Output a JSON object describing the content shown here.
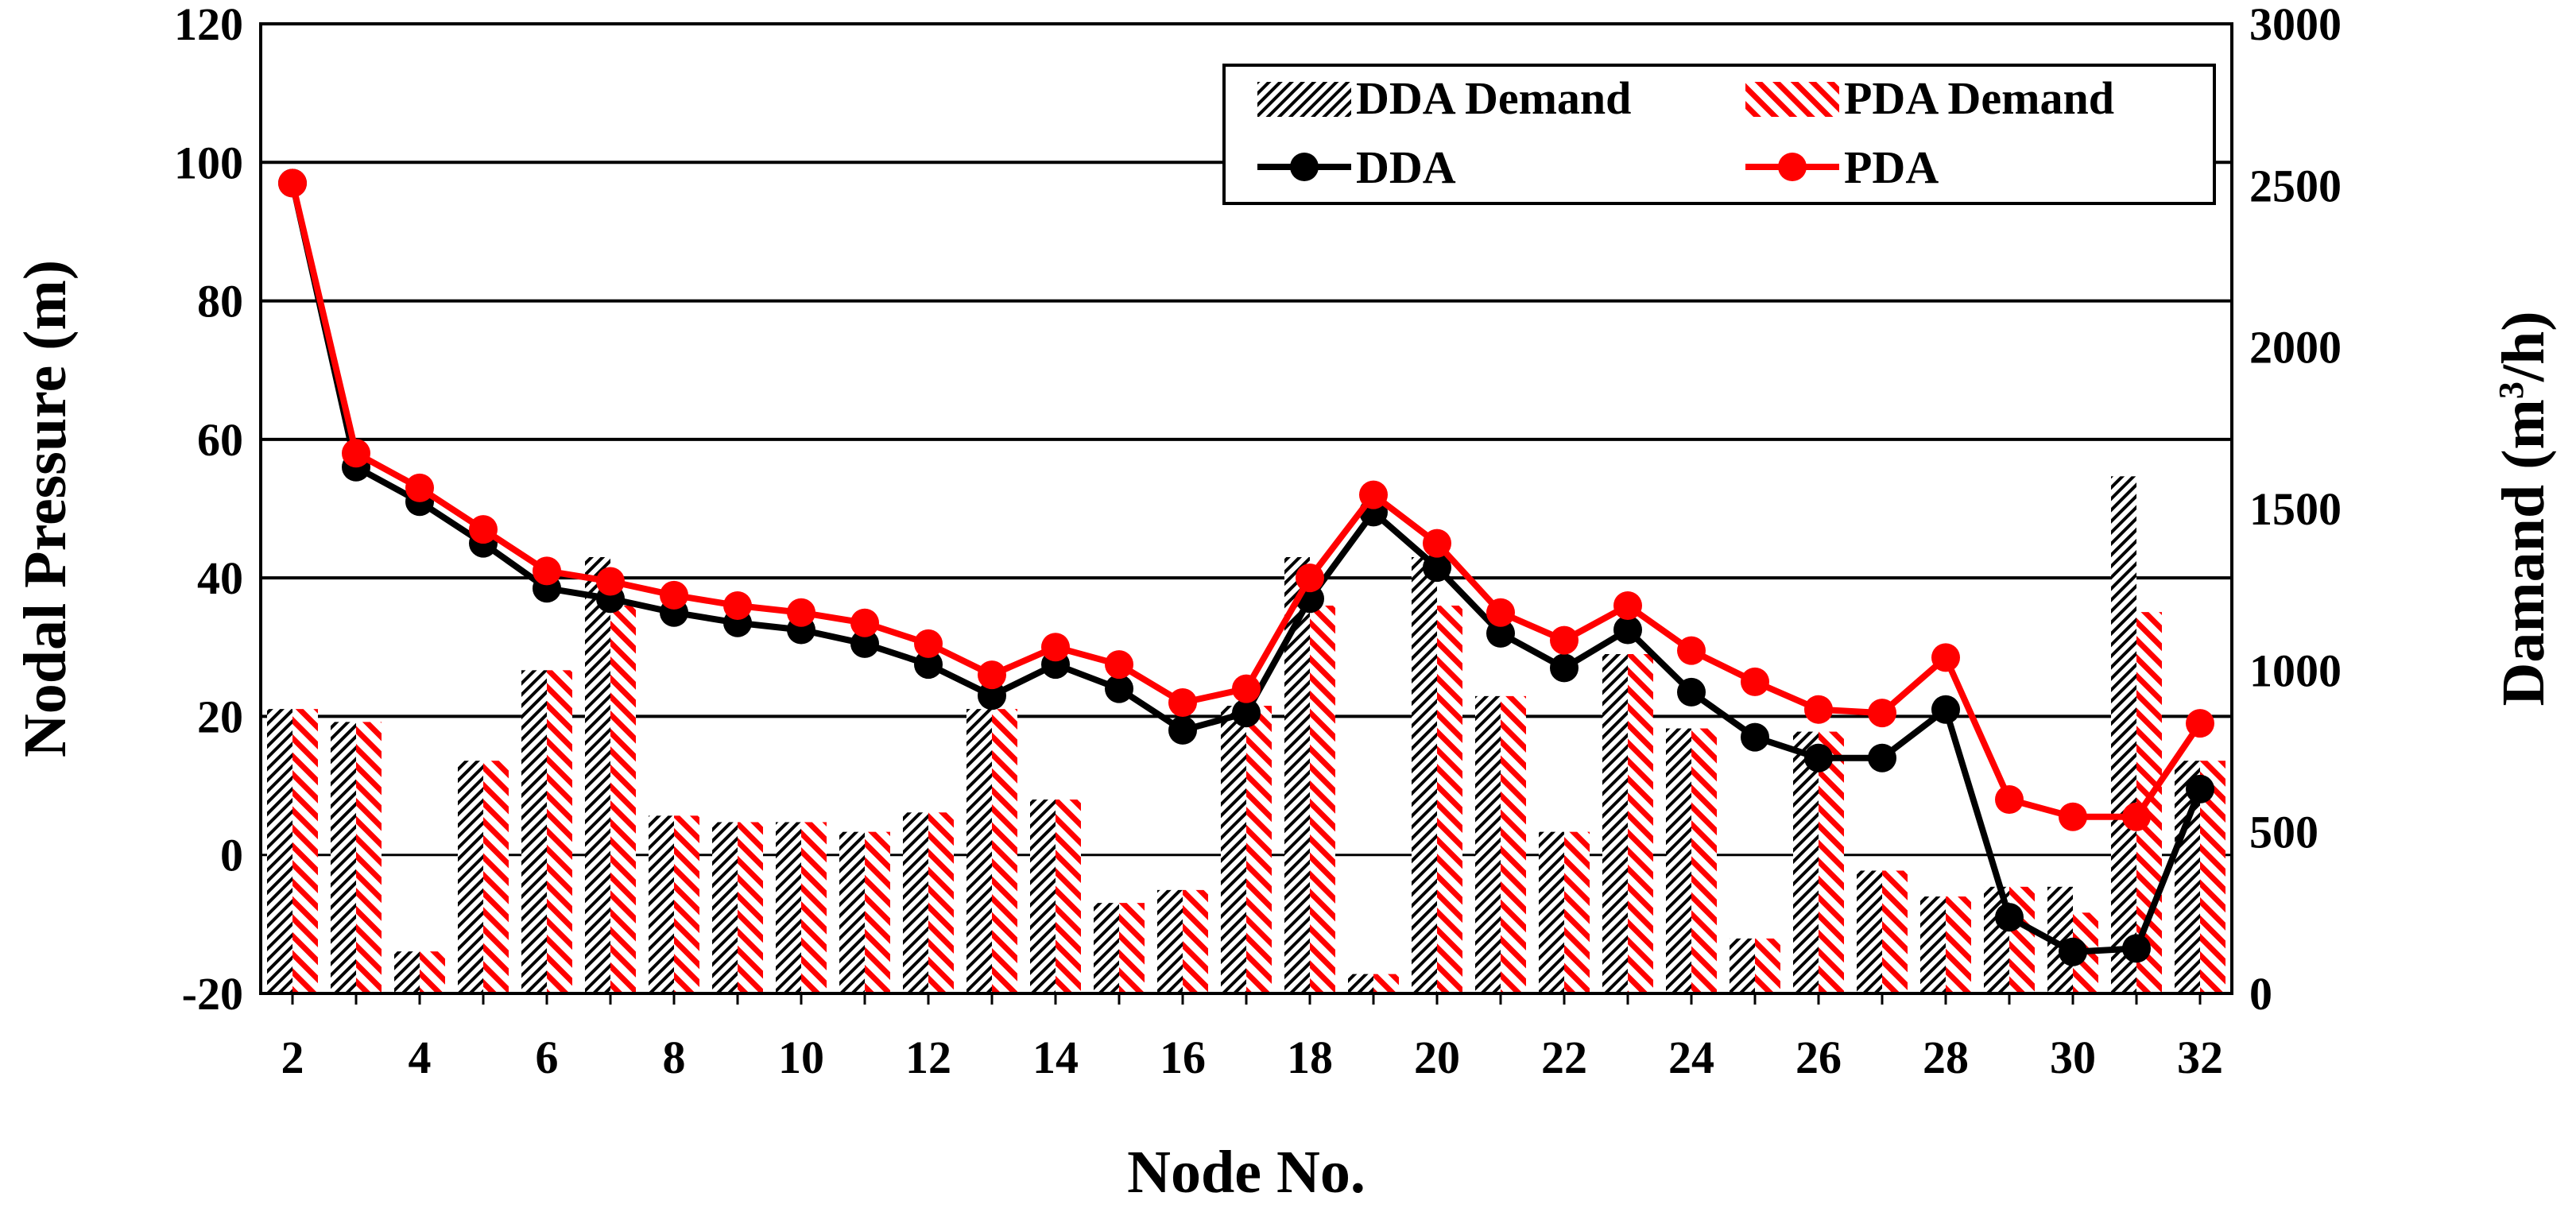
{
  "chart_data": {
    "type": "bar+line",
    "xlabel": "Node No.",
    "ylabel_left": "Nodal Pressure (m)",
    "ylabel_right": {
      "prefix": "Damand (m",
      "sup": "3",
      "suffix": "/h)"
    },
    "ylim_left": [
      -20,
      120
    ],
    "yticks_left": [
      -20,
      0,
      20,
      40,
      60,
      80,
      100,
      120
    ],
    "ylim_right": [
      0,
      3000
    ],
    "yticks_right": [
      0,
      500,
      1000,
      1500,
      2000,
      2500,
      3000
    ],
    "grid": "horizontal",
    "legend_position": "top-right",
    "nodes": [
      2,
      3,
      4,
      5,
      6,
      7,
      8,
      9,
      10,
      11,
      12,
      13,
      14,
      15,
      16,
      17,
      18,
      19,
      20,
      21,
      22,
      23,
      24,
      25,
      26,
      27,
      28,
      29,
      30,
      31,
      32
    ],
    "xtick_labels": [
      "2",
      "4",
      "6",
      "8",
      "10",
      "12",
      "14",
      "16",
      "18",
      "20",
      "22",
      "24",
      "26",
      "28",
      "30",
      "32"
    ],
    "series": [
      {
        "name": "DDA Demand",
        "kind": "bar",
        "axis": "right",
        "pattern": "black-hatch",
        "values": [
          880,
          840,
          130,
          720,
          1000,
          1350,
          550,
          530,
          530,
          500,
          560,
          880,
          600,
          280,
          320,
          890,
          1350,
          60,
          1350,
          920,
          500,
          1050,
          820,
          170,
          810,
          380,
          300,
          330,
          330,
          1600,
          720
        ]
      },
      {
        "name": "PDA Demand",
        "kind": "bar",
        "axis": "right",
        "pattern": "red-hatch",
        "values": [
          880,
          840,
          130,
          720,
          1000,
          1200,
          550,
          530,
          530,
          500,
          560,
          880,
          600,
          280,
          320,
          890,
          1200,
          60,
          1200,
          920,
          500,
          1050,
          820,
          170,
          810,
          380,
          300,
          330,
          250,
          1180,
          720
        ]
      },
      {
        "name": "DDA",
        "kind": "line",
        "axis": "left",
        "color": "#000000",
        "values": [
          97,
          56,
          51,
          45,
          38.5,
          37,
          35,
          33.5,
          32.5,
          30.5,
          27.5,
          23,
          27.5,
          24,
          18,
          20.5,
          37,
          49.5,
          41.5,
          32,
          27,
          32.5,
          23.5,
          17,
          14,
          14,
          21,
          -9,
          -14,
          -13.5,
          9.5
        ]
      },
      {
        "name": "PDA",
        "kind": "line",
        "axis": "left",
        "color": "#ff0000",
        "values": [
          97,
          58,
          53,
          47,
          41,
          39.5,
          37.5,
          36,
          35,
          33.5,
          30.5,
          26,
          30,
          27.5,
          22,
          24,
          40,
          52,
          45,
          35,
          31,
          36,
          29.5,
          25,
          21,
          20.5,
          28.5,
          8,
          5.5,
          5.5,
          19
        ]
      }
    ]
  }
}
